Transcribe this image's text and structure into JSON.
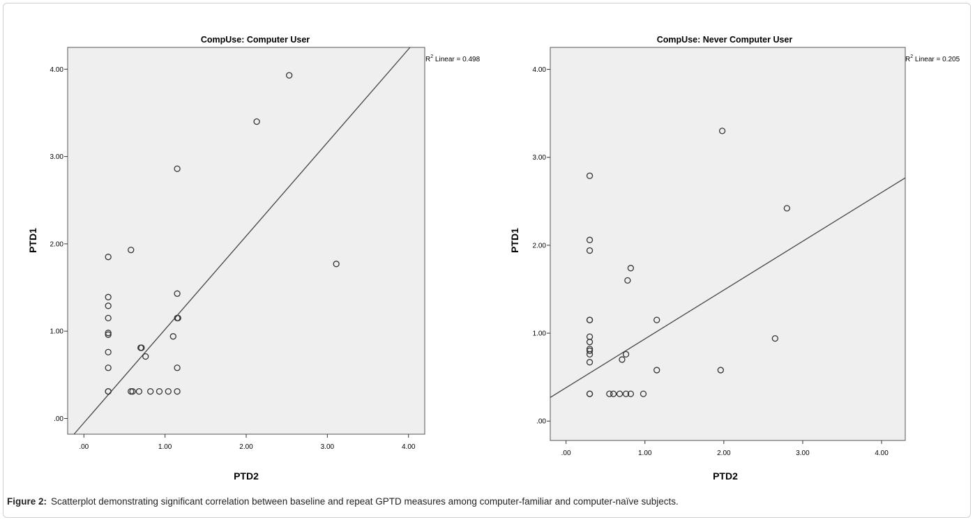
{
  "figure": {
    "caption_label": "Figure 2:",
    "caption_text": "Scatterplot demonstrating significant correlation between baseline and repeat GPTD measures among computer-familiar and computer-naïve subjects."
  },
  "chart_data": [
    {
      "type": "scatter",
      "title": "CompUse: Computer User",
      "xlabel": "PTD2",
      "ylabel": "PTD1",
      "xlim": [
        -0.2,
        4.2
      ],
      "ylim": [
        -0.18,
        4.25
      ],
      "xticks": [
        0,
        1,
        2,
        3,
        4
      ],
      "xtick_labels": [
        ".00",
        "1.00",
        "2.00",
        "3.00",
        "4.00"
      ],
      "yticks": [
        0,
        1,
        2,
        3,
        4
      ],
      "ytick_labels": [
        ".00",
        "1.00",
        "2.00",
        "3.00",
        "4.00"
      ],
      "grid": false,
      "fit_line": {
        "slope": 1.07,
        "intercept": -0.05,
        "r2_label": "R",
        "r2_text": " Linear = 0.498"
      },
      "points": [
        {
          "x": 0.3,
          "y": 0.31
        },
        {
          "x": 0.3,
          "y": 0.31
        },
        {
          "x": 0.3,
          "y": 0.58
        },
        {
          "x": 0.3,
          "y": 0.76
        },
        {
          "x": 0.3,
          "y": 0.96
        },
        {
          "x": 0.3,
          "y": 0.98
        },
        {
          "x": 0.3,
          "y": 1.15
        },
        {
          "x": 0.3,
          "y": 1.29
        },
        {
          "x": 0.3,
          "y": 1.39
        },
        {
          "x": 0.3,
          "y": 1.85
        },
        {
          "x": 0.58,
          "y": 1.93
        },
        {
          "x": 0.58,
          "y": 0.31
        },
        {
          "x": 0.6,
          "y": 0.31
        },
        {
          "x": 0.68,
          "y": 0.31
        },
        {
          "x": 0.7,
          "y": 0.81
        },
        {
          "x": 0.71,
          "y": 0.81
        },
        {
          "x": 0.76,
          "y": 0.71
        },
        {
          "x": 0.82,
          "y": 0.31
        },
        {
          "x": 0.93,
          "y": 0.31
        },
        {
          "x": 1.04,
          "y": 0.31
        },
        {
          "x": 1.1,
          "y": 0.94
        },
        {
          "x": 1.15,
          "y": 1.15
        },
        {
          "x": 1.16,
          "y": 1.15
        },
        {
          "x": 1.15,
          "y": 1.43
        },
        {
          "x": 1.15,
          "y": 0.58
        },
        {
          "x": 1.15,
          "y": 0.31
        },
        {
          "x": 1.15,
          "y": 2.86
        },
        {
          "x": 2.13,
          "y": 3.4
        },
        {
          "x": 2.53,
          "y": 3.93
        },
        {
          "x": 3.11,
          "y": 1.77
        }
      ]
    },
    {
      "type": "scatter",
      "title": "CompUse: Never Computer User",
      "xlabel": "PTD2",
      "ylabel": "PTD1",
      "xlim": [
        -0.2,
        4.3
      ],
      "ylim": [
        -0.22,
        4.25
      ],
      "xticks": [
        0,
        1,
        2,
        3,
        4
      ],
      "xtick_labels": [
        ".00",
        "1.00",
        "2.00",
        "3.00",
        "4.00"
      ],
      "yticks": [
        0,
        1,
        2,
        3,
        4
      ],
      "ytick_labels": [
        ".00",
        "1.00",
        "2.00",
        "3.00",
        "4.00"
      ],
      "grid": false,
      "fit_line": {
        "slope": 0.555,
        "intercept": 0.38,
        "r2_label": "R",
        "r2_text": " Linear = 0.205"
      },
      "points": [
        {
          "x": 0.3,
          "y": 0.31
        },
        {
          "x": 0.3,
          "y": 0.31
        },
        {
          "x": 0.3,
          "y": 0.67
        },
        {
          "x": 0.3,
          "y": 0.76
        },
        {
          "x": 0.3,
          "y": 0.8
        },
        {
          "x": 0.3,
          "y": 0.82
        },
        {
          "x": 0.3,
          "y": 0.9
        },
        {
          "x": 0.3,
          "y": 0.96
        },
        {
          "x": 0.3,
          "y": 1.15
        },
        {
          "x": 0.3,
          "y": 1.15
        },
        {
          "x": 0.3,
          "y": 1.94
        },
        {
          "x": 0.3,
          "y": 2.06
        },
        {
          "x": 0.3,
          "y": 2.79
        },
        {
          "x": 0.55,
          "y": 0.31
        },
        {
          "x": 0.6,
          "y": 0.31
        },
        {
          "x": 0.68,
          "y": 0.31
        },
        {
          "x": 0.71,
          "y": 0.7
        },
        {
          "x": 0.76,
          "y": 0.31
        },
        {
          "x": 0.76,
          "y": 0.76
        },
        {
          "x": 0.78,
          "y": 1.6
        },
        {
          "x": 0.82,
          "y": 1.74
        },
        {
          "x": 0.82,
          "y": 0.31
        },
        {
          "x": 0.98,
          "y": 0.31
        },
        {
          "x": 1.15,
          "y": 1.15
        },
        {
          "x": 1.15,
          "y": 0.58
        },
        {
          "x": 1.96,
          "y": 0.58
        },
        {
          "x": 1.98,
          "y": 3.3
        },
        {
          "x": 2.65,
          "y": 0.94
        },
        {
          "x": 2.8,
          "y": 2.42
        }
      ]
    }
  ]
}
